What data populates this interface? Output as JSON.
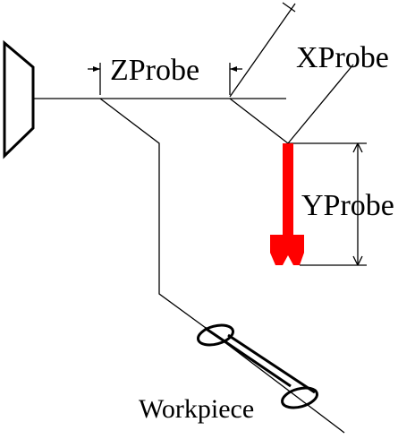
{
  "labels": {
    "z_probe": "ZProbe",
    "x_probe": "XProbe",
    "y_probe": "YProbe",
    "workpiece": "Workpiece"
  },
  "colors": {
    "line": "#000000",
    "probe": "#ff0000",
    "background": "#ffffff"
  },
  "icons": {
    "spindle": "spindle-icon",
    "probe": "probe-stylus-icon",
    "workpiece": "workpiece-cylinder-icon"
  }
}
